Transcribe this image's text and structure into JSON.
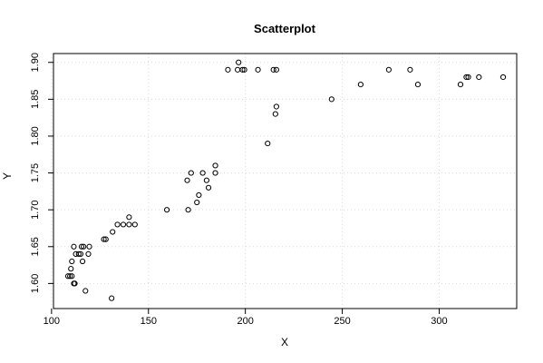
{
  "chart_data": {
    "type": "scatter",
    "title": "Scatterplot",
    "xlabel": "X",
    "ylabel": "Y",
    "xlim": [
      101,
      340
    ],
    "ylim": [
      1.566,
      1.912
    ],
    "xticks": [
      100,
      150,
      200,
      250,
      300
    ],
    "yticks": [
      1.6,
      1.65,
      1.7,
      1.75,
      1.8,
      1.85,
      1.9
    ],
    "ytick_labels": [
      "1.60",
      "1.65",
      "1.70",
      "1.75",
      "1.80",
      "1.85",
      "1.90"
    ],
    "grid": true,
    "points": [
      {
        "x": 108.5,
        "y": 1.61
      },
      {
        "x": 109.5,
        "y": 1.61
      },
      {
        "x": 110.5,
        "y": 1.61
      },
      {
        "x": 110,
        "y": 1.62
      },
      {
        "x": 110.5,
        "y": 1.63
      },
      {
        "x": 111.5,
        "y": 1.6
      },
      {
        "x": 112,
        "y": 1.6
      },
      {
        "x": 111.5,
        "y": 1.65
      },
      {
        "x": 112.5,
        "y": 1.64
      },
      {
        "x": 114,
        "y": 1.64
      },
      {
        "x": 115,
        "y": 1.64
      },
      {
        "x": 115.5,
        "y": 1.65
      },
      {
        "x": 116.5,
        "y": 1.65
      },
      {
        "x": 116,
        "y": 1.63
      },
      {
        "x": 117.5,
        "y": 1.59
      },
      {
        "x": 119,
        "y": 1.64
      },
      {
        "x": 119.5,
        "y": 1.65
      },
      {
        "x": 127,
        "y": 1.66
      },
      {
        "x": 128,
        "y": 1.66
      },
      {
        "x": 131,
        "y": 1.58
      },
      {
        "x": 131.5,
        "y": 1.67
      },
      {
        "x": 134,
        "y": 1.68
      },
      {
        "x": 137,
        "y": 1.68
      },
      {
        "x": 140,
        "y": 1.68
      },
      {
        "x": 140,
        "y": 1.69
      },
      {
        "x": 143,
        "y": 1.68
      },
      {
        "x": 159.5,
        "y": 1.7
      },
      {
        "x": 170,
        "y": 1.74
      },
      {
        "x": 170.5,
        "y": 1.7
      },
      {
        "x": 172,
        "y": 1.75
      },
      {
        "x": 175,
        "y": 1.71
      },
      {
        "x": 176,
        "y": 1.72
      },
      {
        "x": 178,
        "y": 1.75
      },
      {
        "x": 180,
        "y": 1.74
      },
      {
        "x": 181,
        "y": 1.73
      },
      {
        "x": 184.5,
        "y": 1.75
      },
      {
        "x": 184.5,
        "y": 1.76
      },
      {
        "x": 191,
        "y": 1.89
      },
      {
        "x": 196,
        "y": 1.89
      },
      {
        "x": 196.5,
        "y": 1.9
      },
      {
        "x": 198.5,
        "y": 1.89
      },
      {
        "x": 199.5,
        "y": 1.89
      },
      {
        "x": 206.5,
        "y": 1.89
      },
      {
        "x": 211.5,
        "y": 1.79
      },
      {
        "x": 214.5,
        "y": 1.89
      },
      {
        "x": 216,
        "y": 1.89
      },
      {
        "x": 215.5,
        "y": 1.83
      },
      {
        "x": 216,
        "y": 1.84
      },
      {
        "x": 244.5,
        "y": 1.85
      },
      {
        "x": 259.5,
        "y": 1.87
      },
      {
        "x": 274,
        "y": 1.89
      },
      {
        "x": 285,
        "y": 1.89
      },
      {
        "x": 289,
        "y": 1.87
      },
      {
        "x": 311,
        "y": 1.87
      },
      {
        "x": 314,
        "y": 1.88
      },
      {
        "x": 315,
        "y": 1.88
      },
      {
        "x": 320.5,
        "y": 1.88
      },
      {
        "x": 333,
        "y": 1.88
      }
    ]
  }
}
